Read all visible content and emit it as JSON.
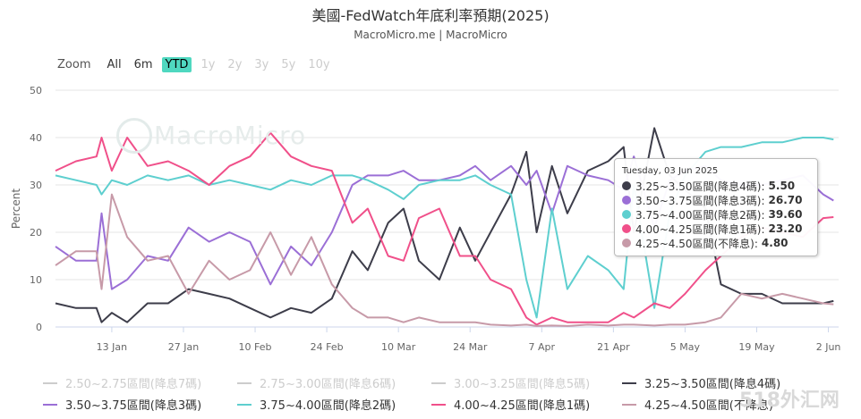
{
  "header": {
    "title": "美國-FedWatch年底利率預期(2025)",
    "subtitle": "MacroMicro.me | MacroMicro"
  },
  "range_selector": {
    "zoom_label": "Zoom",
    "buttons": [
      {
        "label": "All",
        "state": "normal"
      },
      {
        "label": "6m",
        "state": "normal"
      },
      {
        "label": "YTD",
        "state": "active"
      },
      {
        "label": "1y",
        "state": "disabled"
      },
      {
        "label": "2y",
        "state": "disabled"
      },
      {
        "label": "3y",
        "state": "disabled"
      },
      {
        "label": "5y",
        "state": "disabled"
      },
      {
        "label": "10y",
        "state": "disabled"
      }
    ]
  },
  "watermark": "MacroMicro",
  "brand_watermark": "518外汇网",
  "tooltip": {
    "header": "Tuesday, 03 Jun 2025",
    "rows": [
      {
        "label": "3.25~3.50區間(降息4碼):",
        "value": "5.50",
        "color": "#3d3d4a"
      },
      {
        "label": "3.50~3.75區間(降息3碼):",
        "value": "26.70",
        "color": "#9b6fd6"
      },
      {
        "label": "3.75~4.00區間(降息2碼):",
        "value": "39.60",
        "color": "#5ecfcf"
      },
      {
        "label": "4.00~4.25區間(降息1碼):",
        "value": "23.20",
        "color": "#f0508a"
      },
      {
        "label": "4.25~4.50區間(不降息):",
        "value": "4.80",
        "color": "#c79aa8"
      }
    ]
  },
  "legend": [
    {
      "label": "2.50~2.75區間(降息7碼)",
      "visible": false,
      "color": "#cccccc"
    },
    {
      "label": "2.75~3.00區間(降息6碼)",
      "visible": false,
      "color": "#cccccc"
    },
    {
      "label": "3.00~3.25區間(降息5碼)",
      "visible": false,
      "color": "#cccccc"
    },
    {
      "label": "3.25~3.50區間(降息4碼)",
      "visible": true,
      "color": "#3d3d4a"
    },
    {
      "label": "3.50~3.75區間(降息3碼)",
      "visible": true,
      "color": "#9b6fd6"
    },
    {
      "label": "3.75~4.00區間(降息2碼)",
      "visible": true,
      "color": "#5ecfcf"
    },
    {
      "label": "4.00~4.25區間(降息1碼)",
      "visible": true,
      "color": "#f0508a"
    },
    {
      "label": "4.25~4.50區間(不降息)",
      "visible": true,
      "color": "#c79aa8"
    }
  ],
  "chart_data": {
    "type": "line",
    "ylabel": "Percent",
    "ylim": [
      0,
      50
    ],
    "yticks": [
      0,
      10,
      20,
      30,
      40,
      50
    ],
    "xlim": [
      "2025-01-02",
      "2025-06-04"
    ],
    "xticks": [
      {
        "date": "2025-01-13",
        "label": "13 Jan"
      },
      {
        "date": "2025-01-27",
        "label": "27 Jan"
      },
      {
        "date": "2025-02-10",
        "label": "10 Feb"
      },
      {
        "date": "2025-02-24",
        "label": "24 Feb"
      },
      {
        "date": "2025-03-10",
        "label": "10 Mar"
      },
      {
        "date": "2025-03-24",
        "label": "24 Mar"
      },
      {
        "date": "2025-04-07",
        "label": "7 Apr"
      },
      {
        "date": "2025-04-21",
        "label": "21 Apr"
      },
      {
        "date": "2025-05-05",
        "label": "5 May"
      },
      {
        "date": "2025-05-19",
        "label": "19 May"
      },
      {
        "date": "2025-06-02",
        "label": "2 Jun"
      }
    ],
    "grid": "horizontal",
    "series": [
      {
        "name": "3.25~3.50區間(降息4碼)",
        "color": "#3d3d4a",
        "points": [
          [
            "2025-01-02",
            5
          ],
          [
            "2025-01-06",
            4
          ],
          [
            "2025-01-10",
            4
          ],
          [
            "2025-01-11",
            1
          ],
          [
            "2025-01-13",
            3
          ],
          [
            "2025-01-16",
            1
          ],
          [
            "2025-01-20",
            5
          ],
          [
            "2025-01-24",
            5
          ],
          [
            "2025-01-28",
            8
          ],
          [
            "2025-02-01",
            7
          ],
          [
            "2025-02-05",
            6
          ],
          [
            "2025-02-09",
            4
          ],
          [
            "2025-02-13",
            2
          ],
          [
            "2025-02-17",
            4
          ],
          [
            "2025-02-21",
            3
          ],
          [
            "2025-02-25",
            6
          ],
          [
            "2025-03-01",
            16
          ],
          [
            "2025-03-04",
            12
          ],
          [
            "2025-03-08",
            22
          ],
          [
            "2025-03-11",
            25
          ],
          [
            "2025-03-14",
            14
          ],
          [
            "2025-03-18",
            10
          ],
          [
            "2025-03-22",
            21
          ],
          [
            "2025-03-25",
            14
          ],
          [
            "2025-03-28",
            20
          ],
          [
            "2025-04-01",
            28
          ],
          [
            "2025-04-04",
            37
          ],
          [
            "2025-04-06",
            20
          ],
          [
            "2025-04-09",
            34
          ],
          [
            "2025-04-12",
            24
          ],
          [
            "2025-04-16",
            33
          ],
          [
            "2025-04-20",
            35
          ],
          [
            "2025-04-23",
            38
          ],
          [
            "2025-04-25",
            20
          ],
          [
            "2025-04-29",
            42
          ],
          [
            "2025-05-02",
            32
          ],
          [
            "2025-05-05",
            29
          ],
          [
            "2025-05-09",
            25
          ],
          [
            "2025-05-12",
            9
          ],
          [
            "2025-05-16",
            7
          ],
          [
            "2025-05-20",
            7
          ],
          [
            "2025-05-24",
            5
          ],
          [
            "2025-05-28",
            5
          ],
          [
            "2025-06-01",
            5
          ],
          [
            "2025-06-03",
            5.5
          ]
        ]
      },
      {
        "name": "3.50~3.75區間(降息3碼)",
        "color": "#9b6fd6",
        "points": [
          [
            "2025-01-02",
            17
          ],
          [
            "2025-01-06",
            14
          ],
          [
            "2025-01-10",
            14
          ],
          [
            "2025-01-11",
            24
          ],
          [
            "2025-01-13",
            8
          ],
          [
            "2025-01-16",
            10
          ],
          [
            "2025-01-20",
            15
          ],
          [
            "2025-01-24",
            14
          ],
          [
            "2025-01-28",
            21
          ],
          [
            "2025-02-01",
            18
          ],
          [
            "2025-02-05",
            20
          ],
          [
            "2025-02-09",
            18
          ],
          [
            "2025-02-13",
            9
          ],
          [
            "2025-02-17",
            17
          ],
          [
            "2025-02-21",
            13
          ],
          [
            "2025-02-25",
            20
          ],
          [
            "2025-03-01",
            30
          ],
          [
            "2025-03-04",
            32
          ],
          [
            "2025-03-08",
            32
          ],
          [
            "2025-03-11",
            33
          ],
          [
            "2025-03-14",
            31
          ],
          [
            "2025-03-18",
            31
          ],
          [
            "2025-03-22",
            32
          ],
          [
            "2025-03-25",
            34
          ],
          [
            "2025-03-28",
            31
          ],
          [
            "2025-04-01",
            34
          ],
          [
            "2025-04-04",
            30
          ],
          [
            "2025-04-06",
            33
          ],
          [
            "2025-04-09",
            24
          ],
          [
            "2025-04-12",
            34
          ],
          [
            "2025-04-16",
            32
          ],
          [
            "2025-04-20",
            31
          ],
          [
            "2025-04-23",
            29
          ],
          [
            "2025-04-25",
            36
          ],
          [
            "2025-04-29",
            21
          ],
          [
            "2025-05-02",
            31
          ],
          [
            "2025-05-05",
            33
          ],
          [
            "2025-05-09",
            34
          ],
          [
            "2025-05-12",
            31
          ],
          [
            "2025-05-16",
            30
          ],
          [
            "2025-05-20",
            30
          ],
          [
            "2025-05-24",
            31
          ],
          [
            "2025-05-28",
            32
          ],
          [
            "2025-06-01",
            28
          ],
          [
            "2025-06-03",
            26.7
          ]
        ]
      },
      {
        "name": "3.75~4.00區間(降息2碼)",
        "color": "#5ecfcf",
        "points": [
          [
            "2025-01-02",
            32
          ],
          [
            "2025-01-06",
            31
          ],
          [
            "2025-01-10",
            30
          ],
          [
            "2025-01-11",
            28
          ],
          [
            "2025-01-13",
            31
          ],
          [
            "2025-01-16",
            30
          ],
          [
            "2025-01-20",
            32
          ],
          [
            "2025-01-24",
            31
          ],
          [
            "2025-01-28",
            32
          ],
          [
            "2025-02-01",
            30
          ],
          [
            "2025-02-05",
            31
          ],
          [
            "2025-02-09",
            30
          ],
          [
            "2025-02-13",
            29
          ],
          [
            "2025-02-17",
            31
          ],
          [
            "2025-02-21",
            30
          ],
          [
            "2025-02-25",
            32
          ],
          [
            "2025-03-01",
            32
          ],
          [
            "2025-03-04",
            31
          ],
          [
            "2025-03-08",
            29
          ],
          [
            "2025-03-11",
            27
          ],
          [
            "2025-03-14",
            30
          ],
          [
            "2025-03-18",
            31
          ],
          [
            "2025-03-22",
            31
          ],
          [
            "2025-03-25",
            32
          ],
          [
            "2025-03-28",
            30
          ],
          [
            "2025-04-01",
            28
          ],
          [
            "2025-04-04",
            10
          ],
          [
            "2025-04-06",
            2
          ],
          [
            "2025-04-09",
            25
          ],
          [
            "2025-04-12",
            8
          ],
          [
            "2025-04-16",
            15
          ],
          [
            "2025-04-20",
            12
          ],
          [
            "2025-04-23",
            8
          ],
          [
            "2025-04-25",
            30
          ],
          [
            "2025-04-29",
            4
          ],
          [
            "2025-05-02",
            24
          ],
          [
            "2025-05-05",
            32
          ],
          [
            "2025-05-09",
            37
          ],
          [
            "2025-05-12",
            38
          ],
          [
            "2025-05-16",
            38
          ],
          [
            "2025-05-20",
            39
          ],
          [
            "2025-05-24",
            39
          ],
          [
            "2025-05-28",
            40
          ],
          [
            "2025-06-01",
            40
          ],
          [
            "2025-06-03",
            39.6
          ]
        ]
      },
      {
        "name": "4.00~4.25區間(降息1碼)",
        "color": "#f0508a",
        "points": [
          [
            "2025-01-02",
            33
          ],
          [
            "2025-01-06",
            35
          ],
          [
            "2025-01-10",
            36
          ],
          [
            "2025-01-11",
            40
          ],
          [
            "2025-01-13",
            33
          ],
          [
            "2025-01-16",
            40
          ],
          [
            "2025-01-20",
            34
          ],
          [
            "2025-01-24",
            35
          ],
          [
            "2025-01-28",
            33
          ],
          [
            "2025-02-01",
            30
          ],
          [
            "2025-02-05",
            34
          ],
          [
            "2025-02-09",
            36
          ],
          [
            "2025-02-13",
            41
          ],
          [
            "2025-02-17",
            36
          ],
          [
            "2025-02-21",
            34
          ],
          [
            "2025-02-25",
            33
          ],
          [
            "2025-03-01",
            22
          ],
          [
            "2025-03-04",
            25
          ],
          [
            "2025-03-08",
            15
          ],
          [
            "2025-03-11",
            14
          ],
          [
            "2025-03-14",
            23
          ],
          [
            "2025-03-18",
            25
          ],
          [
            "2025-03-22",
            15
          ],
          [
            "2025-03-25",
            15
          ],
          [
            "2025-03-28",
            10
          ],
          [
            "2025-04-01",
            8
          ],
          [
            "2025-04-04",
            2
          ],
          [
            "2025-04-06",
            0.5
          ],
          [
            "2025-04-09",
            2
          ],
          [
            "2025-04-12",
            1
          ],
          [
            "2025-04-16",
            1
          ],
          [
            "2025-04-20",
            1
          ],
          [
            "2025-04-23",
            3
          ],
          [
            "2025-04-25",
            2
          ],
          [
            "2025-04-29",
            5
          ],
          [
            "2025-05-02",
            4
          ],
          [
            "2025-05-05",
            7
          ],
          [
            "2025-05-09",
            12
          ],
          [
            "2025-05-12",
            15
          ],
          [
            "2025-05-16",
            19
          ],
          [
            "2025-05-20",
            21
          ],
          [
            "2025-05-24",
            20
          ],
          [
            "2025-05-28",
            19
          ],
          [
            "2025-06-01",
            23
          ],
          [
            "2025-06-03",
            23.2
          ]
        ]
      },
      {
        "name": "4.25~4.50區間(不降息)",
        "color": "#c79aa8",
        "points": [
          [
            "2025-01-02",
            13
          ],
          [
            "2025-01-06",
            16
          ],
          [
            "2025-01-10",
            16
          ],
          [
            "2025-01-11",
            8
          ],
          [
            "2025-01-13",
            28
          ],
          [
            "2025-01-16",
            19
          ],
          [
            "2025-01-20",
            14
          ],
          [
            "2025-01-24",
            15
          ],
          [
            "2025-01-28",
            7
          ],
          [
            "2025-02-01",
            14
          ],
          [
            "2025-02-05",
            10
          ],
          [
            "2025-02-09",
            12
          ],
          [
            "2025-02-13",
            20
          ],
          [
            "2025-02-17",
            11
          ],
          [
            "2025-02-21",
            19
          ],
          [
            "2025-02-25",
            9
          ],
          [
            "2025-03-01",
            4
          ],
          [
            "2025-03-04",
            2
          ],
          [
            "2025-03-08",
            2
          ],
          [
            "2025-03-11",
            1
          ],
          [
            "2025-03-14",
            2
          ],
          [
            "2025-03-18",
            1
          ],
          [
            "2025-03-22",
            1
          ],
          [
            "2025-03-25",
            1
          ],
          [
            "2025-03-28",
            0.5
          ],
          [
            "2025-04-01",
            0.3
          ],
          [
            "2025-04-04",
            0.5
          ],
          [
            "2025-04-06",
            0.2
          ],
          [
            "2025-04-09",
            0.3
          ],
          [
            "2025-04-12",
            0.2
          ],
          [
            "2025-04-16",
            0.5
          ],
          [
            "2025-04-20",
            0.3
          ],
          [
            "2025-04-23",
            0.5
          ],
          [
            "2025-04-25",
            0.5
          ],
          [
            "2025-04-29",
            0.3
          ],
          [
            "2025-05-02",
            0.5
          ],
          [
            "2025-05-05",
            0.5
          ],
          [
            "2025-05-09",
            1
          ],
          [
            "2025-05-12",
            2
          ],
          [
            "2025-05-16",
            7
          ],
          [
            "2025-05-20",
            6
          ],
          [
            "2025-05-24",
            7
          ],
          [
            "2025-05-28",
            6
          ],
          [
            "2025-06-01",
            5
          ],
          [
            "2025-06-03",
            4.8
          ]
        ]
      }
    ]
  }
}
